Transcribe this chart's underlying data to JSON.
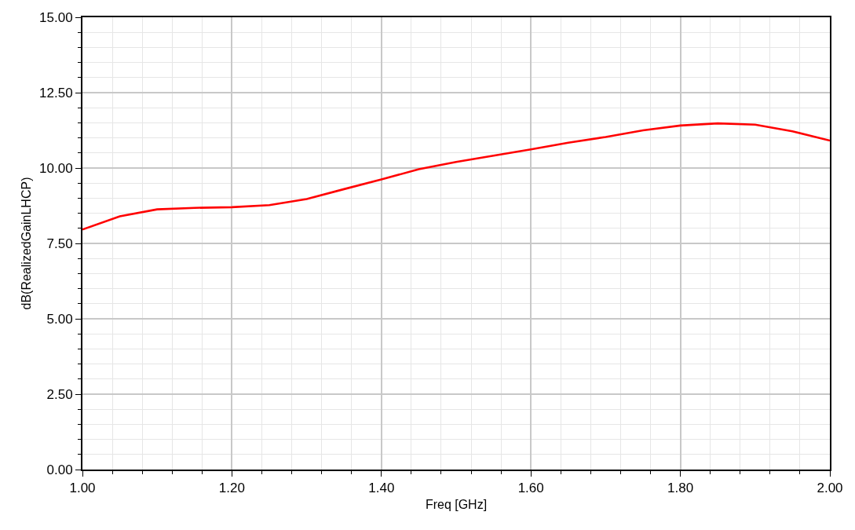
{
  "chart_data": {
    "type": "line",
    "xlabel": "Freq [GHz]",
    "ylabel": "dB(RealizedGainLHCP)",
    "x": [
      1.0,
      1.05,
      1.1,
      1.15,
      1.2,
      1.25,
      1.3,
      1.35,
      1.4,
      1.45,
      1.5,
      1.55,
      1.6,
      1.65,
      1.7,
      1.75,
      1.8,
      1.85,
      1.9,
      1.95,
      2.0
    ],
    "series": [
      {
        "color": "#ff0000",
        "values": [
          7.96,
          8.4,
          8.63,
          8.68,
          8.7,
          8.77,
          8.97,
          9.3,
          9.62,
          9.96,
          10.2,
          10.41,
          10.62,
          10.84,
          11.03,
          11.25,
          11.41,
          11.48,
          11.44,
          11.22,
          10.91
        ]
      }
    ],
    "xlim": [
      1.0,
      2.0
    ],
    "ylim": [
      0,
      15
    ],
    "xticks": [
      {
        "value": 1.0,
        "label": "1.00"
      },
      {
        "value": 1.04,
        "label": null
      },
      {
        "value": 1.08,
        "label": null
      },
      {
        "value": 1.12,
        "label": null
      },
      {
        "value": 1.16,
        "label": null
      },
      {
        "value": 1.2,
        "label": "1.20"
      },
      {
        "value": 1.24,
        "label": null
      },
      {
        "value": 1.28,
        "label": null
      },
      {
        "value": 1.32,
        "label": null
      },
      {
        "value": 1.36,
        "label": null
      },
      {
        "value": 1.4,
        "label": "1.40"
      },
      {
        "value": 1.44,
        "label": null
      },
      {
        "value": 1.48,
        "label": null
      },
      {
        "value": 1.52,
        "label": null
      },
      {
        "value": 1.56,
        "label": null
      },
      {
        "value": 1.6,
        "label": "1.60"
      },
      {
        "value": 1.64,
        "label": null
      },
      {
        "value": 1.68,
        "label": null
      },
      {
        "value": 1.72,
        "label": null
      },
      {
        "value": 1.76,
        "label": null
      },
      {
        "value": 1.8,
        "label": "1.80"
      },
      {
        "value": 1.84,
        "label": null
      },
      {
        "value": 1.88,
        "label": null
      },
      {
        "value": 1.92,
        "label": null
      },
      {
        "value": 1.96,
        "label": null
      },
      {
        "value": 2.0,
        "label": "2.00"
      }
    ],
    "yticks": [
      {
        "value": 0,
        "label": "0.00"
      },
      {
        "value": 0.5,
        "label": null
      },
      {
        "value": 1.0,
        "label": null
      },
      {
        "value": 1.5,
        "label": null
      },
      {
        "value": 2.0,
        "label": null
      },
      {
        "value": 2.5,
        "label": "2.50"
      },
      {
        "value": 3.0,
        "label": null
      },
      {
        "value": 3.5,
        "label": null
      },
      {
        "value": 4.0,
        "label": null
      },
      {
        "value": 4.5,
        "label": null
      },
      {
        "value": 5.0,
        "label": "5.00"
      },
      {
        "value": 5.5,
        "label": null
      },
      {
        "value": 6.0,
        "label": null
      },
      {
        "value": 6.5,
        "label": null
      },
      {
        "value": 7.0,
        "label": null
      },
      {
        "value": 7.5,
        "label": "7.50"
      },
      {
        "value": 8.0,
        "label": null
      },
      {
        "value": 8.5,
        "label": null
      },
      {
        "value": 9.0,
        "label": null
      },
      {
        "value": 9.5,
        "label": null
      },
      {
        "value": 10.0,
        "label": "10.00"
      },
      {
        "value": 10.5,
        "label": null
      },
      {
        "value": 11.0,
        "label": null
      },
      {
        "value": 11.5,
        "label": null
      },
      {
        "value": 12.0,
        "label": null
      },
      {
        "value": 12.5,
        "label": "12.50"
      },
      {
        "value": 13.0,
        "label": null
      },
      {
        "value": 13.5,
        "label": null
      },
      {
        "value": 14.0,
        "label": null
      },
      {
        "value": 14.5,
        "label": null
      },
      {
        "value": 15.0,
        "label": "15.00"
      }
    ],
    "grid": true,
    "marker": "none",
    "line_style": "solid"
  }
}
